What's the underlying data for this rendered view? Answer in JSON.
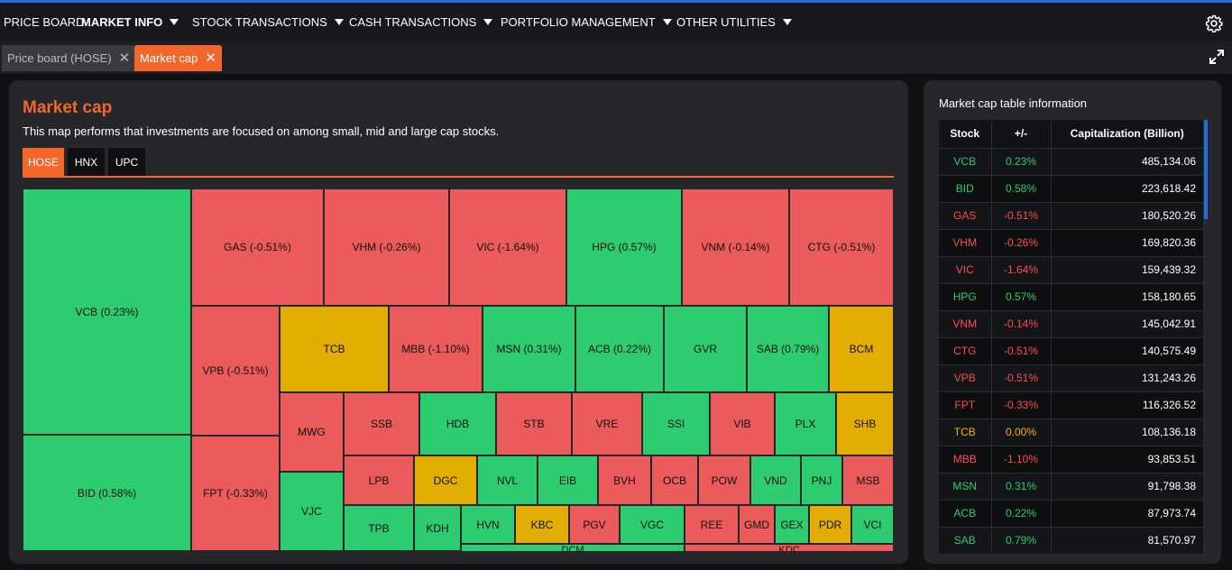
{
  "nav": {
    "items": [
      {
        "label": "PRICE BOARD",
        "caret": false,
        "active": false
      },
      {
        "label": "MARKET INFO",
        "caret": true,
        "active": true
      },
      {
        "label": "STOCK TRANSACTIONS",
        "caret": true,
        "active": false
      },
      {
        "label": "CASH TRANSACTIONS",
        "caret": true,
        "active": false
      },
      {
        "label": "PORTFOLIO MANAGEMENT",
        "caret": true,
        "active": false
      },
      {
        "label": "OTHER UTILITIES",
        "caret": true,
        "active": false
      }
    ],
    "settings_icon": "gear-icon"
  },
  "tabs": [
    {
      "label": "Price board (HOSE)",
      "active": false
    },
    {
      "label": "Market cap",
      "active": true
    }
  ],
  "panel": {
    "title": "Market cap",
    "description": "This map performs that investments are focused on among small, mid and large cap stocks.",
    "exchange_tabs": [
      {
        "label": "HOSE",
        "active": true
      },
      {
        "label": "HNX",
        "active": false
      },
      {
        "label": "UPC",
        "active": false
      }
    ]
  },
  "colors": {
    "accent": "#f5662b",
    "up": "#2ecc71",
    "down": "#eb5b5b",
    "flat": "#e2ac00"
  },
  "treemap": [
    {
      "code": "VCB",
      "label": "VCB (0.23%)",
      "status": "up"
    },
    {
      "code": "BID",
      "label": "BID (0.58%)",
      "status": "up"
    },
    {
      "code": "GAS",
      "label": "GAS (-0.51%)",
      "status": "down"
    },
    {
      "code": "VHM",
      "label": "VHM (-0.26%)",
      "status": "down"
    },
    {
      "code": "VIC",
      "label": "VIC (-1.64%)",
      "status": "down"
    },
    {
      "code": "HPG",
      "label": "HPG (0.57%)",
      "status": "up"
    },
    {
      "code": "VNM",
      "label": "VNM (-0.14%)",
      "status": "down"
    },
    {
      "code": "CTG",
      "label": "CTG (-0.51%)",
      "status": "down"
    },
    {
      "code": "VPB",
      "label": "VPB (-0.51%)",
      "status": "down"
    },
    {
      "code": "FPT",
      "label": "FPT (-0.33%)",
      "status": "down"
    },
    {
      "code": "TCB",
      "label": "TCB",
      "status": "flat"
    },
    {
      "code": "MBB",
      "label": "MBB (-1.10%)",
      "status": "down"
    },
    {
      "code": "MSN",
      "label": "MSN (0.31%)",
      "status": "up"
    },
    {
      "code": "ACB",
      "label": "ACB (0.22%)",
      "status": "up"
    },
    {
      "code": "GVR",
      "label": "GVR",
      "status": "up"
    },
    {
      "code": "SAB",
      "label": "SAB (0.79%)",
      "status": "up"
    },
    {
      "code": "BCM",
      "label": "BCM",
      "status": "flat"
    },
    {
      "code": "MWG",
      "label": "MWG",
      "status": "down"
    },
    {
      "code": "SSB",
      "label": "SSB",
      "status": "down"
    },
    {
      "code": "HDB",
      "label": "HDB",
      "status": "up"
    },
    {
      "code": "STB",
      "label": "STB",
      "status": "down"
    },
    {
      "code": "VRE",
      "label": "VRE",
      "status": "down"
    },
    {
      "code": "SSI",
      "label": "SSI",
      "status": "up"
    },
    {
      "code": "VIB",
      "label": "VIB",
      "status": "down"
    },
    {
      "code": "PLX",
      "label": "PLX",
      "status": "up"
    },
    {
      "code": "SHB",
      "label": "SHB",
      "status": "flat"
    },
    {
      "code": "VJC",
      "label": "VJC",
      "status": "up"
    },
    {
      "code": "LPB",
      "label": "LPB",
      "status": "down"
    },
    {
      "code": "DGC",
      "label": "DGC",
      "status": "flat"
    },
    {
      "code": "NVL",
      "label": "NVL",
      "status": "up"
    },
    {
      "code": "EIB",
      "label": "EIB",
      "status": "up"
    },
    {
      "code": "BVH",
      "label": "BVH",
      "status": "down"
    },
    {
      "code": "OCB",
      "label": "OCB",
      "status": "down"
    },
    {
      "code": "POW",
      "label": "POW",
      "status": "down"
    },
    {
      "code": "VND",
      "label": "VND",
      "status": "up"
    },
    {
      "code": "PNJ",
      "label": "PNJ",
      "status": "up"
    },
    {
      "code": "MSB",
      "label": "MSB",
      "status": "down"
    },
    {
      "code": "TPB",
      "label": "TPB",
      "status": "up"
    },
    {
      "code": "KDH",
      "label": "KDH",
      "status": "up"
    },
    {
      "code": "HVN",
      "label": "HVN",
      "status": "up"
    },
    {
      "code": "KBC",
      "label": "KBC",
      "status": "flat"
    },
    {
      "code": "PGV",
      "label": "PGV",
      "status": "down"
    },
    {
      "code": "VGC",
      "label": "VGC",
      "status": "up"
    },
    {
      "code": "REE",
      "label": "REE",
      "status": "down"
    },
    {
      "code": "GMD",
      "label": "GMD",
      "status": "down"
    },
    {
      "code": "GEX",
      "label": "GEX",
      "status": "up"
    },
    {
      "code": "PDR",
      "label": "PDR",
      "status": "flat"
    },
    {
      "code": "VCI",
      "label": "VCI",
      "status": "up"
    },
    {
      "code": "DCM",
      "label": "DCM",
      "status": "up"
    },
    {
      "code": "KDC",
      "label": "KDC",
      "status": "down"
    }
  ],
  "table": {
    "title": "Market cap table information",
    "headers": [
      "Stock",
      "+/-",
      "Capitalization (Billion)"
    ],
    "rows": [
      {
        "stock": "VCB",
        "change": "0.23%",
        "cap": "485,134.06",
        "status": "up"
      },
      {
        "stock": "BID",
        "change": "0.58%",
        "cap": "223,618.42",
        "status": "up"
      },
      {
        "stock": "GAS",
        "change": "-0.51%",
        "cap": "180,520.26",
        "status": "down"
      },
      {
        "stock": "VHM",
        "change": "-0.26%",
        "cap": "169,820.36",
        "status": "down"
      },
      {
        "stock": "VIC",
        "change": "-1.64%",
        "cap": "159,439.32",
        "status": "down"
      },
      {
        "stock": "HPG",
        "change": "0.57%",
        "cap": "158,180.65",
        "status": "up"
      },
      {
        "stock": "VNM",
        "change": "-0.14%",
        "cap": "145,042.91",
        "status": "down"
      },
      {
        "stock": "CTG",
        "change": "-0.51%",
        "cap": "140,575.49",
        "status": "down"
      },
      {
        "stock": "VPB",
        "change": "-0.51%",
        "cap": "131,243.26",
        "status": "down"
      },
      {
        "stock": "FPT",
        "change": "-0.33%",
        "cap": "116,326.52",
        "status": "down"
      },
      {
        "stock": "TCB",
        "change": "0.00%",
        "cap": "108,136.18",
        "status": "flat"
      },
      {
        "stock": "MBB",
        "change": "-1.10%",
        "cap": "93,853.51",
        "status": "down"
      },
      {
        "stock": "MSN",
        "change": "0.31%",
        "cap": "91,798.38",
        "status": "up"
      },
      {
        "stock": "ACB",
        "change": "0.22%",
        "cap": "87,973.74",
        "status": "up"
      },
      {
        "stock": "SAB",
        "change": "0.79%",
        "cap": "81,570.97",
        "status": "up"
      }
    ]
  }
}
